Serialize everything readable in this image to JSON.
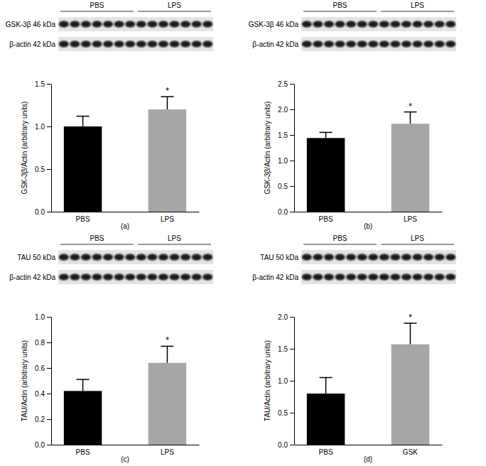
{
  "chart_data": [
    {
      "type": "bar",
      "panel_label": "(a)",
      "y_label": "GSK-3β/Actin (arbitrary units)",
      "categories": [
        "PBS",
        "LPS"
      ],
      "values": [
        1.0,
        1.2
      ],
      "errors": [
        0.12,
        0.15
      ],
      "colors": [
        "#000000",
        "#a6a6a6"
      ],
      "ylim": [
        0,
        1.5
      ],
      "yticks": [
        {
          "value": 0,
          "label": "0.0"
        },
        {
          "value": 0.5,
          "label": "0.5"
        },
        {
          "value": 1,
          "label": "1.0"
        },
        {
          "value": 1.5,
          "label": "1.5"
        }
      ],
      "annotations": [
        {
          "category": "LPS",
          "text": "*"
        }
      ],
      "blot": {
        "groups": [
          "PBS",
          "LPS"
        ],
        "rows": [
          "GSK-3β 46 kDa",
          "β-actin 42 kDa"
        ]
      }
    },
    {
      "type": "bar",
      "panel_label": "(b)",
      "y_label": "GSK-3β/Actin (arbitrary units)",
      "categories": [
        "PBS",
        "LPS"
      ],
      "values": [
        1.44,
        1.72
      ],
      "errors": [
        0.11,
        0.23
      ],
      "colors": [
        "#000000",
        "#a6a6a6"
      ],
      "ylim": [
        0,
        2.5
      ],
      "yticks": [
        {
          "value": 0,
          "label": "0.0"
        },
        {
          "value": 0.5,
          "label": "0.5"
        },
        {
          "value": 1,
          "label": "1.0"
        },
        {
          "value": 1.5,
          "label": "1.5"
        },
        {
          "value": 2,
          "label": "2.0"
        },
        2.5
      ],
      "annotations": [
        {
          "category": "LPS",
          "text": "*"
        }
      ],
      "blot": {
        "groups": [
          "PBS",
          "LPS"
        ],
        "rows": [
          "GSK-3β 46 kDa",
          "β-actin 42 kDa"
        ]
      }
    },
    {
      "type": "bar",
      "panel_label": "(c)",
      "y_label": "TAU/Actin (arbitrary units)",
      "categories": [
        "PBS",
        "LPS"
      ],
      "values": [
        0.42,
        0.64
      ],
      "errors": [
        0.09,
        0.13
      ],
      "colors": [
        "#000000",
        "#a6a6a6"
      ],
      "ylim": [
        0,
        1.0
      ],
      "yticks": [
        {
          "value": 0,
          "label": "0.0"
        },
        0.2,
        0.4,
        0.6,
        0.8,
        {
          "value": 1,
          "label": "1.0"
        }
      ],
      "annotations": [
        {
          "category": "LPS",
          "text": "*"
        }
      ],
      "blot": {
        "groups": [
          "PBS",
          "LPS"
        ],
        "rows": [
          "TAU 50 kDa",
          "β-actin 42 kDa"
        ]
      }
    },
    {
      "type": "bar",
      "panel_label": "(d)",
      "y_label": "TAU/Actin (arbitrary units)",
      "categories": [
        "PBS",
        "GSK"
      ],
      "values": [
        0.8,
        1.57
      ],
      "errors": [
        0.25,
        0.33
      ],
      "colors": [
        "#000000",
        "#a6a6a6"
      ],
      "ylim": [
        0,
        2.0
      ],
      "yticks": [
        {
          "value": 0,
          "label": "0.0"
        },
        {
          "value": 0.5,
          "label": "0.5"
        },
        {
          "value": 1,
          "label": "1.0"
        },
        {
          "value": 1.5,
          "label": "1.5"
        },
        {
          "value": 2,
          "label": "2.0"
        }
      ],
      "annotations": [
        {
          "category": "GSK",
          "text": "*"
        }
      ],
      "blot": {
        "groups": [
          "PBS",
          "LPS"
        ],
        "rows": [
          "TAU 50 kDa",
          "β-actin 42 kDa"
        ]
      }
    }
  ]
}
